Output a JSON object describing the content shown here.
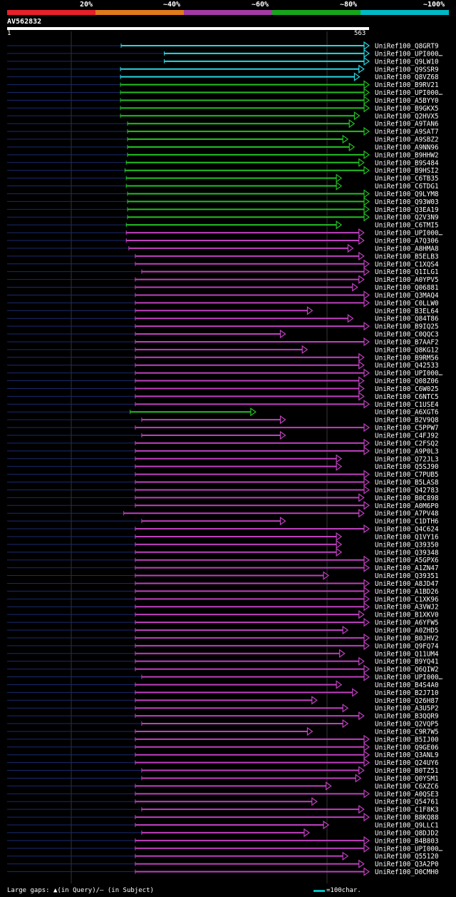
{
  "legend": {
    "labels": [
      "20%",
      "~40%",
      "~60%",
      "~80%",
      "~100%"
    ],
    "colors": [
      "#e8202a",
      "#e07a1b",
      "#a23aa5",
      "#15a61b",
      "#00b9c6"
    ]
  },
  "query": {
    "id": "AV562832",
    "start_label": "1",
    "end_label": "563",
    "length": 563
  },
  "footer": {
    "gap_text": "Large gaps: ▲(in Query)/— (in Subject)",
    "scale_text": "=100char."
  },
  "chart_data": {
    "type": "alignment",
    "hits": [
      {
        "name": "UniRef100_Q8GRT9",
        "start": 178,
        "end": 563,
        "color": "cyan"
      },
      {
        "name": "UniRef100_UPI000…",
        "start": 245,
        "end": 563,
        "color": "cyan"
      },
      {
        "name": "UniRef100_Q9LW10",
        "start": 245,
        "end": 563,
        "color": "cyan"
      },
      {
        "name": "UniRef100_Q9SSR9",
        "start": 177,
        "end": 555,
        "color": "cyan"
      },
      {
        "name": "UniRef100_Q8VZ68",
        "start": 177,
        "end": 548,
        "color": "cyan"
      },
      {
        "name": "UniRef100_B9RV21",
        "start": 177,
        "end": 563,
        "color": "green"
      },
      {
        "name": "UniRef100_UPI000…",
        "start": 177,
        "end": 563,
        "color": "green"
      },
      {
        "name": "UniRef100_A5BYY0",
        "start": 177,
        "end": 563,
        "color": "green"
      },
      {
        "name": "UniRef100_B9GKX5",
        "start": 177,
        "end": 563,
        "color": "green"
      },
      {
        "name": "UniRef100_Q2HVX5",
        "start": 177,
        "end": 548,
        "color": "green"
      },
      {
        "name": "UniRef100_A9TAN6",
        "start": 188,
        "end": 540,
        "color": "green"
      },
      {
        "name": "UniRef100_A9SAT7",
        "start": 188,
        "end": 563,
        "color": "green"
      },
      {
        "name": "UniRef100_A9SBZ2",
        "start": 188,
        "end": 530,
        "color": "green"
      },
      {
        "name": "UniRef100_A9NN96",
        "start": 188,
        "end": 540,
        "color": "green"
      },
      {
        "name": "UniRef100_B9HHW2",
        "start": 188,
        "end": 563,
        "color": "green"
      },
      {
        "name": "UniRef100_B9S484",
        "start": 186,
        "end": 555,
        "color": "green"
      },
      {
        "name": "UniRef100_B9HSI2",
        "start": 184,
        "end": 563,
        "color": "green"
      },
      {
        "name": "UniRef100_C6TB35",
        "start": 186,
        "end": 520,
        "color": "green"
      },
      {
        "name": "UniRef100_C6TDG1",
        "start": 186,
        "end": 520,
        "color": "green"
      },
      {
        "name": "UniRef100_Q9LYM8",
        "start": 188,
        "end": 563,
        "color": "green"
      },
      {
        "name": "UniRef100_Q93W03",
        "start": 188,
        "end": 563,
        "color": "green"
      },
      {
        "name": "UniRef100_Q3EA19",
        "start": 188,
        "end": 563,
        "color": "green"
      },
      {
        "name": "UniRef100_Q2V3N9",
        "start": 188,
        "end": 563,
        "color": "green"
      },
      {
        "name": "UniRef100_C6TMI5",
        "start": 186,
        "end": 520,
        "color": "green"
      },
      {
        "name": "UniRef100_UPI000…",
        "start": 186,
        "end": 555,
        "color": "magenta"
      },
      {
        "name": "UniRef100_A7Q306",
        "start": 186,
        "end": 555,
        "color": "magenta"
      },
      {
        "name": "UniRef100_A8HMA8",
        "start": 190,
        "end": 538,
        "color": "magenta"
      },
      {
        "name": "UniRef100_B5ELB3",
        "start": 200,
        "end": 555,
        "color": "magenta"
      },
      {
        "name": "UniRef100_C1XQS4",
        "start": 200,
        "end": 563,
        "color": "magenta"
      },
      {
        "name": "UniRef100_Q1ILG1",
        "start": 210,
        "end": 563,
        "color": "magenta"
      },
      {
        "name": "UniRef100_A0YPV5",
        "start": 200,
        "end": 555,
        "color": "magenta"
      },
      {
        "name": "UniRef100_Q06881",
        "start": 200,
        "end": 545,
        "color": "magenta"
      },
      {
        "name": "UniRef100_Q3MAQ4",
        "start": 200,
        "end": 563,
        "color": "magenta"
      },
      {
        "name": "UniRef100_C0LLW0",
        "start": 200,
        "end": 563,
        "color": "magenta"
      },
      {
        "name": "UniRef100_B3EL64",
        "start": 200,
        "end": 475,
        "color": "magenta"
      },
      {
        "name": "UniRef100_Q84T86",
        "start": 200,
        "end": 538,
        "color": "magenta"
      },
      {
        "name": "UniRef100_B9IQ25",
        "start": 200,
        "end": 563,
        "color": "magenta"
      },
      {
        "name": "UniRef100_C0QQC3",
        "start": 200,
        "end": 433,
        "color": "magenta"
      },
      {
        "name": "UniRef100_B7AAF2",
        "start": 200,
        "end": 563,
        "color": "magenta"
      },
      {
        "name": "UniRef100_Q8KG12",
        "start": 200,
        "end": 467,
        "color": "magenta"
      },
      {
        "name": "UniRef100_B9RM56",
        "start": 200,
        "end": 555,
        "color": "magenta"
      },
      {
        "name": "UniRef100_Q42533",
        "start": 200,
        "end": 555,
        "color": "magenta"
      },
      {
        "name": "UniRef100_UPI000…",
        "start": 200,
        "end": 563,
        "color": "magenta"
      },
      {
        "name": "UniRef100_Q08Z06",
        "start": 200,
        "end": 555,
        "color": "magenta"
      },
      {
        "name": "UniRef100_C6W025",
        "start": 200,
        "end": 555,
        "color": "magenta"
      },
      {
        "name": "UniRef100_C6NTC5",
        "start": 200,
        "end": 555,
        "color": "magenta"
      },
      {
        "name": "UniRef100_C1USE4",
        "start": 200,
        "end": 563,
        "color": "magenta"
      },
      {
        "name": "UniRef100_A6XGT6",
        "start": 192,
        "end": 387,
        "color": "green"
      },
      {
        "name": "UniRef100_B2V9Q8",
        "start": 210,
        "end": 433,
        "color": "magenta"
      },
      {
        "name": "UniRef100_C5PPW7",
        "start": 200,
        "end": 563,
        "color": "magenta"
      },
      {
        "name": "UniRef100_C4FJ92",
        "start": 210,
        "end": 433,
        "color": "magenta"
      },
      {
        "name": "UniRef100_C2FSQ2",
        "start": 200,
        "end": 563,
        "color": "magenta"
      },
      {
        "name": "UniRef100_A9P0L3",
        "start": 200,
        "end": 563,
        "color": "magenta"
      },
      {
        "name": "UniRef100_Q72JL3",
        "start": 200,
        "end": 520,
        "color": "magenta"
      },
      {
        "name": "UniRef100_Q5SJ90",
        "start": 200,
        "end": 520,
        "color": "magenta"
      },
      {
        "name": "UniRef100_C7PUB5",
        "start": 200,
        "end": 563,
        "color": "magenta"
      },
      {
        "name": "UniRef100_B5LAS8",
        "start": 200,
        "end": 563,
        "color": "magenta"
      },
      {
        "name": "UniRef100_Q42783",
        "start": 200,
        "end": 563,
        "color": "magenta"
      },
      {
        "name": "UniRef100_B0C898",
        "start": 200,
        "end": 555,
        "color": "magenta"
      },
      {
        "name": "UniRef100_A0M6P0",
        "start": 200,
        "end": 563,
        "color": "magenta"
      },
      {
        "name": "UniRef100_A7PV48",
        "start": 182,
        "end": 555,
        "color": "magenta"
      },
      {
        "name": "UniRef100_C1DTH6",
        "start": 210,
        "end": 433,
        "color": "magenta"
      },
      {
        "name": "UniRef100_Q4C624",
        "start": 200,
        "end": 563,
        "color": "magenta"
      },
      {
        "name": "UniRef100_Q1VY16",
        "start": 200,
        "end": 520,
        "color": "magenta"
      },
      {
        "name": "UniRef100_Q39350",
        "start": 200,
        "end": 520,
        "color": "magenta"
      },
      {
        "name": "UniRef100_Q39348",
        "start": 200,
        "end": 520,
        "color": "magenta"
      },
      {
        "name": "UniRef100_A5GPX6",
        "start": 200,
        "end": 563,
        "color": "magenta"
      },
      {
        "name": "UniRef100_A1ZN47",
        "start": 200,
        "end": 563,
        "color": "magenta"
      },
      {
        "name": "UniRef100_Q39351",
        "start": 200,
        "end": 500,
        "color": "magenta"
      },
      {
        "name": "UniRef100_A8JD47",
        "start": 200,
        "end": 563,
        "color": "magenta"
      },
      {
        "name": "UniRef100_A1BD26",
        "start": 200,
        "end": 563,
        "color": "magenta"
      },
      {
        "name": "UniRef100_C1XK96",
        "start": 200,
        "end": 563,
        "color": "magenta"
      },
      {
        "name": "UniRef100_A3VWJ2",
        "start": 200,
        "end": 563,
        "color": "magenta"
      },
      {
        "name": "UniRef100_B1XKV0",
        "start": 200,
        "end": 555,
        "color": "magenta"
      },
      {
        "name": "UniRef100_A6YFW5",
        "start": 200,
        "end": 563,
        "color": "magenta"
      },
      {
        "name": "UniRef100_A0ZHD5",
        "start": 200,
        "end": 530,
        "color": "magenta"
      },
      {
        "name": "UniRef100_B0JHV2",
        "start": 200,
        "end": 563,
        "color": "magenta"
      },
      {
        "name": "UniRef100_Q9FQ74",
        "start": 200,
        "end": 563,
        "color": "magenta"
      },
      {
        "name": "UniRef100_Q11UM4",
        "start": 200,
        "end": 525,
        "color": "magenta"
      },
      {
        "name": "UniRef100_B9YQ41",
        "start": 200,
        "end": 555,
        "color": "magenta"
      },
      {
        "name": "UniRef100_Q6QIW2",
        "start": 200,
        "end": 563,
        "color": "magenta"
      },
      {
        "name": "UniRef100_UPI000…",
        "start": 210,
        "end": 563,
        "color": "magenta"
      },
      {
        "name": "UniRef100_B4S4A0",
        "start": 200,
        "end": 520,
        "color": "magenta"
      },
      {
        "name": "UniRef100_B2J710",
        "start": 200,
        "end": 545,
        "color": "magenta"
      },
      {
        "name": "UniRef100_Q26H87",
        "start": 200,
        "end": 482,
        "color": "magenta"
      },
      {
        "name": "UniRef100_A3U5P2",
        "start": 200,
        "end": 530,
        "color": "magenta"
      },
      {
        "name": "UniRef100_B3QQR9",
        "start": 200,
        "end": 555,
        "color": "magenta"
      },
      {
        "name": "UniRef100_Q2VQP5",
        "start": 210,
        "end": 530,
        "color": "magenta"
      },
      {
        "name": "UniRef100_C9R7W5",
        "start": 200,
        "end": 475,
        "color": "magenta"
      },
      {
        "name": "UniRef100_B5IJ00",
        "start": 200,
        "end": 563,
        "color": "magenta"
      },
      {
        "name": "UniRef100_Q9GE06",
        "start": 200,
        "end": 563,
        "color": "magenta"
      },
      {
        "name": "UniRef100_Q3ANL9",
        "start": 200,
        "end": 563,
        "color": "magenta"
      },
      {
        "name": "UniRef100_Q24UY6",
        "start": 200,
        "end": 563,
        "color": "magenta"
      },
      {
        "name": "UniRef100_B0TZ51",
        "start": 210,
        "end": 555,
        "color": "magenta"
      },
      {
        "name": "UniRef100_Q0YSM1",
        "start": 210,
        "end": 550,
        "color": "magenta"
      },
      {
        "name": "UniRef100_C6XZC6",
        "start": 200,
        "end": 504,
        "color": "magenta"
      },
      {
        "name": "UniRef100_A0QSE3",
        "start": 200,
        "end": 563,
        "color": "magenta"
      },
      {
        "name": "UniRef100_Q54761",
        "start": 200,
        "end": 482,
        "color": "magenta"
      },
      {
        "name": "UniRef100_C1F8K3",
        "start": 210,
        "end": 555,
        "color": "magenta"
      },
      {
        "name": "UniRef100_B8KQ88",
        "start": 200,
        "end": 563,
        "color": "magenta"
      },
      {
        "name": "UniRef100_Q9LLC1",
        "start": 200,
        "end": 500,
        "color": "magenta"
      },
      {
        "name": "UniRef100_Q8DJD2",
        "start": 210,
        "end": 470,
        "color": "magenta"
      },
      {
        "name": "UniRef100_B4B803",
        "start": 200,
        "end": 563,
        "color": "magenta"
      },
      {
        "name": "UniRef100_UPI000…",
        "start": 200,
        "end": 563,
        "color": "magenta"
      },
      {
        "name": "UniRef100_Q55120",
        "start": 200,
        "end": 530,
        "color": "magenta"
      },
      {
        "name": "UniRef100_Q3A2P0",
        "start": 200,
        "end": 555,
        "color": "magenta"
      },
      {
        "name": "UniRef100_D0CMH0",
        "start": 200,
        "end": 563,
        "color": "magenta"
      }
    ]
  }
}
